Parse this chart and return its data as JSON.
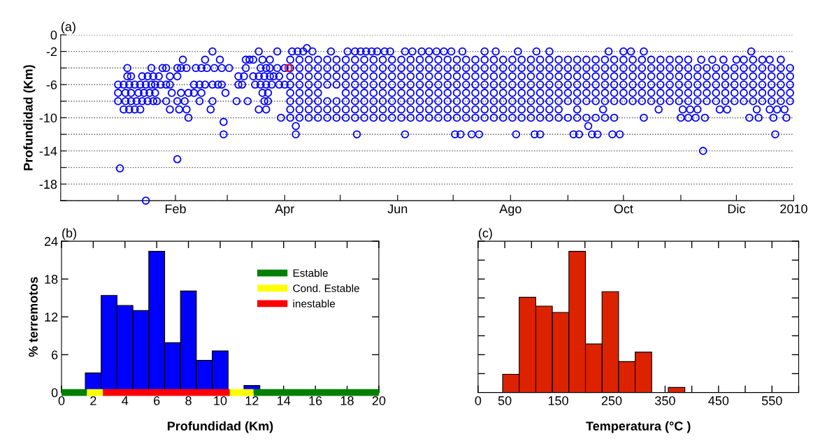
{
  "chart_data": [
    {
      "type": "scatter",
      "title": "(a)",
      "ylabel": "Profundidad (Km)",
      "marker": "circle",
      "grid": "y",
      "xlim": [
        "2008-12-01",
        "2010-01-01"
      ],
      "xticks": [
        {
          "value": "2009-01-01",
          "label": null
        },
        {
          "value": "2009-02-01",
          "label": "Feb"
        },
        {
          "value": "2009-03-01",
          "label": null
        },
        {
          "value": "2009-04-01",
          "label": "Apr"
        },
        {
          "value": "2009-05-01",
          "label": null
        },
        {
          "value": "2009-06-01",
          "label": "Jun"
        },
        {
          "value": "2009-07-01",
          "label": null
        },
        {
          "value": "2009-08-01",
          "label": "Ago"
        },
        {
          "value": "2009-09-01",
          "label": null
        },
        {
          "value": "2009-10-01",
          "label": "Oct"
        },
        {
          "value": "2009-11-01",
          "label": null
        },
        {
          "value": "2009-12-01",
          "label": "Dic"
        },
        {
          "value": "2010-01-01",
          "label": "2010"
        }
      ],
      "ylim": [
        -20,
        0
      ],
      "yticks": [
        {
          "value": -20,
          "label": null
        },
        -18,
        {
          "value": -16,
          "label": null
        },
        -14,
        {
          "value": -12,
          "label": null
        },
        -10,
        {
          "value": -8,
          "label": null
        },
        -6,
        {
          "value": -4,
          "label": null
        },
        -2,
        0
      ],
      "series": [
        {
          "color": "#0000ff",
          "x": [
            "2009-02-21",
            "2009-03-18",
            "2009-03-28",
            "2009-04-05",
            "2009-04-08",
            "2009-04-11",
            "2009-04-13",
            "2009-04-16",
            "2009-04-26",
            "2009-05-05",
            "2009-05-09",
            "2009-05-12",
            "2009-05-15",
            "2009-05-18",
            "2009-05-21",
            "2009-05-25",
            "2009-05-28",
            "2009-06-05",
            "2009-06-09",
            "2009-06-14",
            "2009-06-18",
            "2009-06-22",
            "2009-06-26",
            "2009-06-30",
            "2009-07-06",
            "2009-07-18",
            "2009-07-24",
            "2009-08-05",
            "2009-08-15",
            "2009-08-22",
            "2009-09-23",
            "2009-10-01",
            "2009-10-05",
            "2009-10-12",
            "2009-12-09"
          ],
          "values": [
            -2,
            -2,
            -2,
            -2,
            -2,
            -2,
            -1.6,
            -2,
            -2,
            -2,
            -2,
            -2,
            -2,
            -2,
            -2,
            -2,
            -2,
            -2,
            -2,
            -2,
            -2,
            -2,
            -2,
            -2,
            -2,
            -2,
            -2,
            -2,
            -2,
            -2,
            -2,
            -2,
            -2,
            -2,
            -2
          ]
        },
        {
          "color": "#0000ff",
          "x": [
            "2009-02-05",
            "2009-02-17",
            "2009-02-25",
            "2009-03-11",
            "2009-03-13",
            "2009-03-15",
            "2009-03-20",
            "2009-03-24",
            "2009-04-04",
            "2009-04-09",
            "2009-04-14",
            "2009-04-19",
            "2009-04-24",
            "2009-04-29",
            "2009-05-04",
            "2009-05-09",
            "2009-05-14",
            "2009-05-19",
            "2009-05-24",
            "2009-05-29",
            "2009-06-03",
            "2009-06-08",
            "2009-06-13",
            "2009-06-18",
            "2009-06-23",
            "2009-06-28",
            "2009-07-03",
            "2009-07-08",
            "2009-07-13",
            "2009-07-18",
            "2009-07-23",
            "2009-07-28",
            "2009-08-02",
            "2009-08-07",
            "2009-08-12",
            "2009-08-17",
            "2009-08-22",
            "2009-08-27",
            "2009-09-01",
            "2009-09-06",
            "2009-09-11",
            "2009-09-16",
            "2009-09-21",
            "2009-09-26",
            "2009-10-01",
            "2009-10-06",
            "2009-10-11",
            "2009-10-16",
            "2009-10-21",
            "2009-10-26",
            "2009-10-31",
            "2009-11-05",
            "2009-11-12",
            "2009-11-18",
            "2009-11-24",
            "2009-12-01",
            "2009-12-05",
            "2009-12-10",
            "2009-12-15",
            "2009-12-19",
            "2009-12-25"
          ],
          "values": [
            -3,
            -3,
            -3,
            -3,
            -3,
            -3,
            -3,
            -3,
            -3,
            -3,
            -3,
            -3,
            -3,
            -3,
            -3,
            -3,
            -3,
            -3,
            -3,
            -3,
            -3,
            -3,
            -3,
            -3,
            -3,
            -3,
            -3,
            -3,
            -3,
            -3,
            -3,
            -3,
            -3,
            -3,
            -3,
            -3,
            -3,
            -3,
            -3,
            -3,
            -3,
            -3,
            -3,
            -3,
            -3,
            -3,
            -3,
            -3,
            -3,
            -3,
            -3,
            -3,
            -3,
            -3,
            -3,
            -3,
            -3,
            -3,
            -3,
            -3,
            -3
          ]
        },
        {
          "color": "#0000ff",
          "x": [
            "2009-01-06",
            "2009-01-19",
            "2009-01-25",
            "2009-01-27",
            "2009-02-02",
            "2009-02-04",
            "2009-02-07",
            "2009-02-12",
            "2009-02-15",
            "2009-02-18",
            "2009-02-22",
            "2009-02-26",
            "2009-03-02",
            "2009-03-11",
            "2009-03-19",
            "2009-03-22",
            "2009-03-24",
            "2009-03-28",
            "2009-04-01",
            "2009-04-04",
            "2009-04-09",
            "2009-04-14",
            "2009-04-19",
            "2009-04-24",
            "2009-04-29",
            "2009-05-04",
            "2009-05-09",
            "2009-05-14",
            "2009-05-19",
            "2009-05-24",
            "2009-05-29",
            "2009-06-03",
            "2009-06-08",
            "2009-06-13",
            "2009-06-18",
            "2009-06-23",
            "2009-06-28",
            "2009-07-03",
            "2009-07-08",
            "2009-07-13",
            "2009-07-18",
            "2009-07-23",
            "2009-07-28",
            "2009-08-02",
            "2009-08-07",
            "2009-08-12",
            "2009-08-17",
            "2009-08-22",
            "2009-08-27",
            "2009-09-01",
            "2009-09-06",
            "2009-09-11",
            "2009-09-16",
            "2009-09-21",
            "2009-09-26",
            "2009-10-01",
            "2009-10-06",
            "2009-10-11",
            "2009-10-16",
            "2009-10-21",
            "2009-10-26",
            "2009-10-31",
            "2009-11-05",
            "2009-11-10",
            "2009-11-15",
            "2009-11-20",
            "2009-11-25",
            "2009-11-30",
            "2009-12-05",
            "2009-12-10",
            "2009-12-15",
            "2009-12-20",
            "2009-12-25",
            "2009-12-30"
          ],
          "values": [
            -4,
            -4,
            -4,
            -4,
            -4,
            -4,
            -4,
            -4,
            -4,
            -4,
            -4,
            -4,
            -4,
            -4,
            -4,
            -4,
            -4,
            -4,
            -4,
            -4,
            -4,
            -4,
            -4,
            -4,
            -4,
            -4,
            -4,
            -4,
            -4,
            -4,
            -4,
            -4,
            -4,
            -4,
            -4,
            -4,
            -4,
            -4,
            -4,
            -4,
            -4,
            -4,
            -4,
            -4,
            -4,
            -4,
            -4,
            -4,
            -4,
            -4,
            -4,
            -4,
            -4,
            -4,
            -4,
            -4,
            -4,
            -4,
            -4,
            -4,
            -4,
            -4,
            -4,
            -4,
            -4,
            -4,
            -4,
            -4,
            -4,
            -4,
            -4,
            -4,
            -4,
            -4
          ]
        },
        {
          "color": "#0000ff",
          "x": [
            "2009-01-06",
            "2009-01-08",
            "2009-01-14",
            "2009-01-17",
            "2009-01-20",
            "2009-01-23",
            "2009-01-29",
            "2009-02-02",
            "2009-03-07",
            "2009-03-10",
            "2009-03-15",
            "2009-03-18",
            "2009-03-21",
            "2009-03-24",
            "2009-03-26",
            "2009-03-29",
            "2009-04-04",
            "2009-04-09",
            "2009-04-14",
            "2009-04-19",
            "2009-04-24",
            "2009-04-29",
            "2009-05-04",
            "2009-05-09",
            "2009-05-14",
            "2009-05-19",
            "2009-05-24",
            "2009-05-29",
            "2009-06-03",
            "2009-06-08",
            "2009-06-13",
            "2009-06-18",
            "2009-06-23",
            "2009-06-28",
            "2009-07-03",
            "2009-07-08",
            "2009-07-13",
            "2009-07-18",
            "2009-07-23",
            "2009-07-28",
            "2009-08-02",
            "2009-08-07",
            "2009-08-12",
            "2009-08-17",
            "2009-08-22",
            "2009-08-27",
            "2009-09-01",
            "2009-09-06",
            "2009-09-11",
            "2009-09-16",
            "2009-09-21",
            "2009-09-26",
            "2009-10-01",
            "2009-10-06",
            "2009-10-11",
            "2009-10-16",
            "2009-10-21",
            "2009-10-26",
            "2009-10-31",
            "2009-11-05",
            "2009-11-10",
            "2009-11-15",
            "2009-11-20",
            "2009-11-25",
            "2009-11-30",
            "2009-12-05",
            "2009-12-10",
            "2009-12-15",
            "2009-12-20",
            "2009-12-25",
            "2009-12-30"
          ],
          "values": [
            -5,
            -5,
            -5,
            -5,
            -5,
            -5,
            -5,
            -5,
            -5,
            -5,
            -5,
            -5,
            -5,
            -5,
            -5,
            -5,
            -5,
            -5,
            -5,
            -5,
            -5,
            -5,
            -5,
            -5,
            -5,
            -5,
            -5,
            -5,
            -5,
            -5,
            -5,
            -5,
            -5,
            -5,
            -5,
            -5,
            -5,
            -5,
            -5,
            -5,
            -5,
            -5,
            -5,
            -5,
            -5,
            -5,
            -5,
            -5,
            -5,
            -5,
            -5,
            -5,
            -5,
            -5,
            -5,
            -5,
            -5,
            -5,
            -5,
            -5,
            -5,
            -5,
            -5,
            -5,
            -5,
            -5,
            -5,
            -5,
            -5,
            -5,
            -5
          ]
        },
        {
          "color": "#0000ff",
          "x": [
            "2009-01-01",
            "2009-01-04",
            "2009-01-07",
            "2009-01-10",
            "2009-01-13",
            "2009-01-16",
            "2009-01-19",
            "2009-01-21",
            "2009-01-24",
            "2009-01-27",
            "2009-01-29",
            "2009-02-11",
            "2009-02-14",
            "2009-02-17",
            "2009-02-21",
            "2009-02-24",
            "2009-02-26",
            "2009-03-07",
            "2009-03-09",
            "2009-03-16",
            "2009-03-19",
            "2009-03-22",
            "2009-03-25",
            "2009-03-29",
            "2009-04-01",
            "2009-04-04",
            "2009-04-09",
            "2009-04-14",
            "2009-04-19",
            "2009-04-24",
            "2009-04-29",
            "2009-05-04",
            "2009-05-09",
            "2009-05-14",
            "2009-05-19",
            "2009-05-24",
            "2009-05-29",
            "2009-06-03",
            "2009-06-08",
            "2009-06-13",
            "2009-06-18",
            "2009-06-23",
            "2009-06-28",
            "2009-07-03",
            "2009-07-08",
            "2009-07-13",
            "2009-07-18",
            "2009-07-23",
            "2009-07-28",
            "2009-08-02",
            "2009-08-07",
            "2009-08-12",
            "2009-08-17",
            "2009-08-22",
            "2009-08-27",
            "2009-09-01",
            "2009-09-06",
            "2009-09-11",
            "2009-09-16",
            "2009-09-21",
            "2009-09-26",
            "2009-10-01",
            "2009-10-06",
            "2009-10-11",
            "2009-10-16",
            "2009-10-21",
            "2009-10-26",
            "2009-10-31",
            "2009-11-05",
            "2009-11-10",
            "2009-11-15",
            "2009-11-20",
            "2009-11-25",
            "2009-11-30",
            "2009-12-05",
            "2009-12-10",
            "2009-12-15",
            "2009-12-20",
            "2009-12-25",
            "2009-12-30"
          ],
          "values": [
            -6,
            -6,
            -6,
            -6,
            -6,
            -6,
            -6,
            -6,
            -6,
            -6,
            -6,
            -6,
            -6,
            -6,
            -6,
            -6,
            -6,
            -6,
            -6,
            -6,
            -6,
            -6,
            -6,
            -6,
            -6,
            -6,
            -6,
            -6,
            -6,
            -6,
            -6,
            -6,
            -6,
            -6,
            -6,
            -6,
            -6,
            -6,
            -6,
            -6,
            -6,
            -6,
            -6,
            -6,
            -6,
            -6,
            -6,
            -6,
            -6,
            -6,
            -6,
            -6,
            -6,
            -6,
            -6,
            -6,
            -6,
            -6,
            -6,
            -6,
            -6,
            -6,
            -6,
            -6,
            -6,
            -6,
            -6,
            -6,
            -6,
            -6,
            -6,
            -6,
            -6,
            -6,
            -6,
            -6,
            -6,
            -6,
            -6,
            -6
          ]
        },
        {
          "color": "#0000ff",
          "x": [
            "2009-01-01",
            "2009-01-05",
            "2009-01-08",
            "2009-01-12",
            "2009-01-15",
            "2009-01-18",
            "2009-01-21",
            "2009-01-30",
            "2009-02-04",
            "2009-02-08",
            "2009-02-11",
            "2009-02-15",
            "2009-02-28",
            "2009-03-20",
            "2009-03-23",
            "2009-04-04",
            "2009-04-09",
            "2009-04-14",
            "2009-04-19",
            "2009-05-04",
            "2009-05-09",
            "2009-05-14",
            "2009-05-19",
            "2009-05-24",
            "2009-05-29",
            "2009-06-03",
            "2009-06-08",
            "2009-06-13",
            "2009-06-18",
            "2009-06-23",
            "2009-06-28",
            "2009-07-03",
            "2009-07-08",
            "2009-07-13",
            "2009-07-18",
            "2009-07-23",
            "2009-07-28",
            "2009-08-02",
            "2009-08-07",
            "2009-08-12",
            "2009-08-17",
            "2009-08-22",
            "2009-08-27",
            "2009-09-01",
            "2009-09-06",
            "2009-09-11",
            "2009-09-16",
            "2009-09-21",
            "2009-09-26",
            "2009-10-01",
            "2009-10-06",
            "2009-10-11",
            "2009-10-16",
            "2009-10-21",
            "2009-10-26",
            "2009-10-31",
            "2009-11-05",
            "2009-11-10",
            "2009-11-15",
            "2009-11-20",
            "2009-11-25",
            "2009-11-30",
            "2009-12-05",
            "2009-12-10",
            "2009-12-15",
            "2009-12-20",
            "2009-12-25",
            "2009-12-30"
          ],
          "values": [
            -7,
            -7,
            -7,
            -7,
            -7,
            -7,
            -7,
            -7,
            -7,
            -7,
            -7,
            -7,
            -7,
            -7,
            -7,
            -7,
            -7,
            -7,
            -7,
            -7,
            -7,
            -7,
            -7,
            -7,
            -7,
            -7,
            -7,
            -7,
            -7,
            -7,
            -7,
            -7,
            -7,
            -7,
            -7,
            -7,
            -7,
            -7,
            -7,
            -7,
            -7,
            -7,
            -7,
            -7,
            -7,
            -7,
            -7,
            -7,
            -7,
            -7,
            -7,
            -7,
            -7,
            -7,
            -7,
            -7,
            -7,
            -7,
            -7,
            -7,
            -7,
            -7,
            -7,
            -7,
            -7,
            -7,
            -7,
            -7
          ]
        },
        {
          "color": "#0000ff",
          "x": [
            "2009-01-01",
            "2009-01-05",
            "2009-01-08",
            "2009-01-11",
            "2009-01-14",
            "2009-01-17",
            "2009-01-20",
            "2009-01-22",
            "2009-01-27",
            "2009-02-02",
            "2009-02-06",
            "2009-02-14",
            "2009-02-21",
            "2009-03-06",
            "2009-03-12",
            "2009-03-21",
            "2009-03-23",
            "2009-04-04",
            "2009-04-09",
            "2009-04-14",
            "2009-04-19",
            "2009-04-24",
            "2009-04-29",
            "2009-05-04",
            "2009-05-09",
            "2009-05-14",
            "2009-05-19",
            "2009-05-24",
            "2009-05-29",
            "2009-06-03",
            "2009-06-08",
            "2009-06-13",
            "2009-06-18",
            "2009-06-23",
            "2009-06-28",
            "2009-07-03",
            "2009-07-08",
            "2009-07-13",
            "2009-07-18",
            "2009-07-23",
            "2009-07-28",
            "2009-08-02",
            "2009-08-07",
            "2009-08-12",
            "2009-08-17",
            "2009-08-22",
            "2009-08-27",
            "2009-09-01",
            "2009-09-06",
            "2009-09-11",
            "2009-09-16",
            "2009-09-21",
            "2009-09-26",
            "2009-10-01",
            "2009-10-06",
            "2009-10-11",
            "2009-10-16",
            "2009-10-21",
            "2009-10-26",
            "2009-10-31",
            "2009-11-05",
            "2009-11-10",
            "2009-11-15",
            "2009-11-20",
            "2009-11-25",
            "2009-11-30",
            "2009-12-05",
            "2009-12-10",
            "2009-12-15",
            "2009-12-20",
            "2009-12-25",
            "2009-12-30"
          ],
          "values": [
            -8,
            -8,
            -8,
            -8,
            -8,
            -8,
            -8,
            -8,
            -8,
            -8,
            -8,
            -8,
            -8,
            -8,
            -8,
            -8,
            -8,
            -8,
            -8,
            -8,
            -8,
            -8,
            -8,
            -8,
            -8,
            -8,
            -8,
            -8,
            -8,
            -8,
            -8,
            -8,
            -8,
            -8,
            -8,
            -8,
            -8,
            -8,
            -8,
            -8,
            -8,
            -8,
            -8,
            -8,
            -8,
            -8,
            -8,
            -8,
            -8,
            -8,
            -8,
            -8,
            -8,
            -8,
            -8,
            -8,
            -8,
            -8,
            -8,
            -8,
            -8,
            -8,
            -8,
            -8,
            -8,
            -8,
            -8,
            -8,
            -8,
            -8,
            -8,
            -8
          ]
        },
        {
          "color": "#0000ff",
          "x": [
            "2009-01-04",
            "2009-01-07",
            "2009-01-10",
            "2009-01-13",
            "2009-01-29",
            "2009-02-03",
            "2009-02-07",
            "2009-02-20",
            "2009-03-18",
            "2009-03-22",
            "2009-04-04",
            "2009-04-09",
            "2009-04-14",
            "2009-04-19",
            "2009-04-24",
            "2009-04-29",
            "2009-05-04",
            "2009-05-09",
            "2009-05-14",
            "2009-05-19",
            "2009-05-24",
            "2009-05-29",
            "2009-06-03",
            "2009-06-08",
            "2009-06-13",
            "2009-06-18",
            "2009-06-23",
            "2009-06-28",
            "2009-07-03",
            "2009-07-08",
            "2009-07-13",
            "2009-07-18",
            "2009-07-23",
            "2009-07-28",
            "2009-08-02",
            "2009-08-07",
            "2009-08-12",
            "2009-08-17",
            "2009-08-22",
            "2009-08-27",
            "2009-09-06",
            "2009-09-20",
            "2009-10-20",
            "2009-11-02",
            "2009-11-06",
            "2009-11-10",
            "2009-11-22",
            "2009-11-26",
            "2009-12-12",
            "2009-12-19",
            "2009-12-23",
            "2009-12-27"
          ],
          "values": [
            -9,
            -9,
            -9,
            -9,
            -9,
            -9,
            -9,
            -9,
            -9,
            -9,
            -9,
            -9,
            -9,
            -9,
            -9,
            -9,
            -9,
            -9,
            -9,
            -9,
            -9,
            -9,
            -9,
            -9,
            -9,
            -9,
            -9,
            -9,
            -9,
            -9,
            -9,
            -9,
            -9,
            -9,
            -9,
            -9,
            -9,
            -9,
            -9,
            -9,
            -9,
            -9,
            -9,
            -9,
            -9,
            -9,
            -9,
            -9,
            -9,
            -9,
            -9,
            -9
          ]
        },
        {
          "color": "#0000ff",
          "x": [
            "2009-02-08",
            "2009-03-30",
            "2009-04-04",
            "2009-04-09",
            "2009-04-14",
            "2009-04-19",
            "2009-04-24",
            "2009-04-29",
            "2009-05-04",
            "2009-05-09",
            "2009-05-14",
            "2009-05-19",
            "2009-05-24",
            "2009-05-29",
            "2009-06-03",
            "2009-06-08",
            "2009-06-13",
            "2009-06-18",
            "2009-06-23",
            "2009-06-28",
            "2009-07-03",
            "2009-07-08",
            "2009-07-13",
            "2009-07-18",
            "2009-07-23",
            "2009-07-28",
            "2009-08-02",
            "2009-08-07",
            "2009-08-12",
            "2009-08-17",
            "2009-08-22",
            "2009-08-27",
            "2009-09-01",
            "2009-09-06",
            "2009-09-11",
            "2009-09-16",
            "2009-09-21",
            "2009-09-26",
            "2009-10-12",
            "2009-11-01",
            "2009-11-05",
            "2009-11-09",
            "2009-11-14",
            "2009-12-08",
            "2009-12-13",
            "2009-12-21",
            "2009-12-28"
          ],
          "values": [
            -10,
            -10,
            -10,
            -10,
            -10,
            -10,
            -10,
            -10,
            -10,
            -10,
            -10,
            -10,
            -10,
            -10,
            -10,
            -10,
            -10,
            -10,
            -10,
            -10,
            -10,
            -10,
            -10,
            -10,
            -10,
            -10,
            -10,
            -10,
            -10,
            -10,
            -10,
            -10,
            -10,
            -10,
            -10,
            -10,
            -10,
            -10,
            -10,
            -10,
            -10,
            -10,
            -10,
            -10,
            -10,
            -10,
            -10
          ]
        },
        {
          "color": "#0000ff",
          "x": [
            "2009-02-27",
            "2009-04-07",
            "2009-09-12",
            "2009-02-27",
            "2009-04-07",
            "2009-05-10",
            "2009-06-05",
            "2009-07-02",
            "2009-07-05",
            "2009-07-11",
            "2009-07-15",
            "2009-08-04",
            "2009-08-14",
            "2009-08-17",
            "2009-09-04",
            "2009-09-07",
            "2009-09-14",
            "2009-09-17",
            "2009-09-25",
            "2009-09-29",
            "2009-12-22",
            "2009-11-13",
            "2009-02-02",
            "2009-01-02",
            "2009-01-16"
          ],
          "values": [
            -10.5,
            -11,
            -11,
            -12,
            -12,
            -12,
            -12,
            -12,
            -12,
            -12,
            -12,
            -12,
            -12,
            -12,
            -12,
            -12,
            -12,
            -12,
            -12,
            -12,
            -12,
            -14,
            -15,
            -16.1,
            -20
          ]
        },
        {
          "color": "#ff0000",
          "x": [
            "2009-04-03"
          ],
          "values": [
            -4
          ]
        }
      ]
    },
    {
      "type": "histogram",
      "title": "(b)",
      "xlabel": "Profundidad (Km)",
      "ylabel": "% terremotos",
      "color": "#0000ff",
      "bins": [
        1.5,
        2.5,
        3.5,
        4.5,
        5.5,
        6.5,
        7.5,
        8.5,
        9.5,
        10.5,
        11.5,
        12.5
      ],
      "values": [
        3.1,
        15.4,
        13.8,
        13.0,
        22.4,
        7.9,
        16.1,
        5.1,
        6.6,
        null,
        1.1
      ],
      "xlim": [
        0,
        20
      ],
      "xticks": [
        0,
        2,
        4,
        6,
        8,
        10,
        12,
        14,
        16,
        18,
        20
      ],
      "ylim": [
        0,
        24
      ],
      "yticks": [
        0,
        6,
        12,
        18,
        24
      ],
      "legend": "top right",
      "series": [
        {
          "type": "line",
          "name": "Estable",
          "color": "#008000",
          "x": [
            0,
            1.6,
            null,
            12.1,
            20
          ],
          "values": [
            0,
            0,
            null,
            0,
            0
          ]
        },
        {
          "type": "line",
          "name": "Cond. Estable",
          "color": "#ffff00",
          "x": [
            1.6,
            2.6,
            null,
            10.6,
            12.1
          ],
          "values": [
            0,
            0,
            null,
            0,
            0
          ]
        },
        {
          "type": "line",
          "name": "inestable",
          "color": "#ff0000",
          "x": [
            2.6,
            10.6
          ],
          "values": [
            0,
            0
          ]
        }
      ]
    },
    {
      "type": "histogram",
      "title": "(c)",
      "xlabel": "Temperatura (°C )",
      "color": "#dd2200",
      "tick_labels": "x",
      "ylim": [
        0,
        24
      ],
      "yticks": [
        {
          "value": 3,
          "label": null
        },
        {
          "value": 6,
          "label": null
        },
        {
          "value": 9,
          "label": null
        },
        {
          "value": 12,
          "label": null
        },
        {
          "value": 15,
          "label": null
        },
        {
          "value": 18,
          "label": null
        },
        {
          "value": 21,
          "label": null
        },
        {
          "value": 24,
          "label": null
        }
      ],
      "bins": [
        46,
        77,
        108,
        139,
        170,
        201,
        232,
        263,
        294,
        325,
        356,
        387
      ],
      "values": [
        2.9,
        15.1,
        13.7,
        12.7,
        22.4,
        7.7,
        16.0,
        4.9,
        6.4,
        null,
        0.8
      ],
      "xlim": [
        0,
        600
      ],
      "xticks": [
        0,
        50,
        {
          "value": 100,
          "label": null
        },
        150,
        {
          "value": 200,
          "label": null
        },
        250,
        {
          "value": 300,
          "label": null
        },
        350,
        {
          "value": 400,
          "label": null
        },
        450,
        {
          "value": 500,
          "label": null
        },
        550,
        {
          "value": 600,
          "label": null
        }
      ]
    }
  ]
}
